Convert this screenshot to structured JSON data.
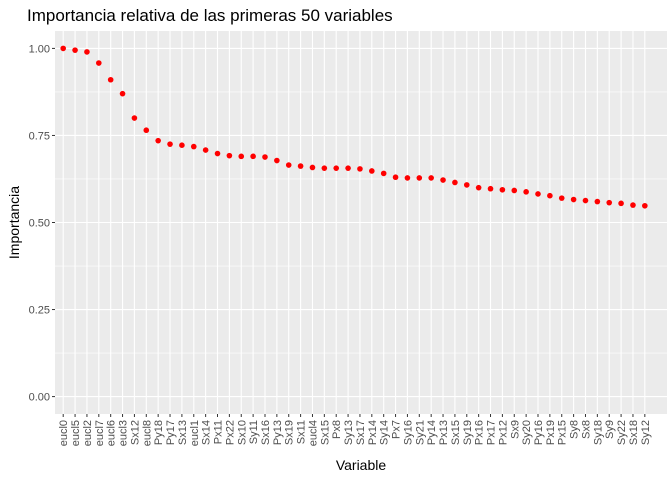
{
  "chart_data": {
    "type": "scatter",
    "title": "Importancia relativa de las primeras 50 variables",
    "xlabel": "Variable",
    "ylabel": "Importancia",
    "ylim": [
      0,
      1
    ],
    "y_ticks": [
      0.0,
      0.25,
      0.5,
      0.75,
      1.0
    ],
    "y_tick_labels": [
      "0.00",
      "0.25",
      "0.50",
      "0.75",
      "1.00"
    ],
    "grid": true,
    "point_color": "#ff0000",
    "panel_background": "#ebebeb",
    "categories": [
      "eucl0",
      "eucl5",
      "eucl2",
      "eucl7",
      "eucl6",
      "eucl3",
      "Sx12",
      "eucl8",
      "Py18",
      "Py17",
      "Sx13",
      "eucl1",
      "Sx14",
      "Px11",
      "Px22",
      "Sx10",
      "Sy11",
      "Sx16",
      "Py13",
      "Sx19",
      "Sx11",
      "eucl4",
      "Sx15",
      "Px8",
      "Sy13",
      "Sx17",
      "Px14",
      "Sy14",
      "Px7",
      "Sy16",
      "Sy21",
      "Py14",
      "Px13",
      "Sx15",
      "Sy19",
      "Px16",
      "Px17",
      "Px12",
      "Sx9",
      "Sy20",
      "Py16",
      "Px19",
      "Px15",
      "Sy8",
      "Sx8",
      "Sy18",
      "Sy9",
      "Sy22",
      "Sx18",
      "Sy12"
    ],
    "values": [
      1.0,
      0.995,
      0.99,
      0.958,
      0.91,
      0.87,
      0.8,
      0.765,
      0.735,
      0.725,
      0.722,
      0.718,
      0.708,
      0.698,
      0.692,
      0.69,
      0.69,
      0.688,
      0.678,
      0.665,
      0.662,
      0.658,
      0.656,
      0.656,
      0.656,
      0.654,
      0.648,
      0.641,
      0.63,
      0.628,
      0.628,
      0.628,
      0.622,
      0.615,
      0.608,
      0.6,
      0.597,
      0.594,
      0.592,
      0.588,
      0.582,
      0.577,
      0.57,
      0.566,
      0.563,
      0.56,
      0.557,
      0.555,
      0.55,
      0.548
    ]
  }
}
